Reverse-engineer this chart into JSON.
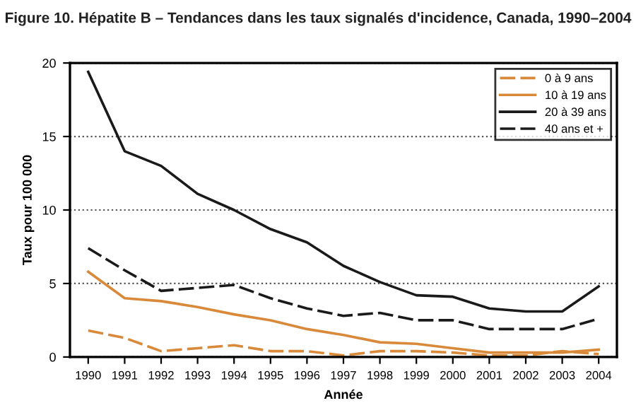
{
  "chart_data": {
    "type": "line",
    "title": "Figure 10. Hépatite B – Tendances dans les taux signalés d'incidence, Canada, 1990–2004",
    "xlabel": "Année",
    "ylabel": "Taux pour 100 000",
    "categories": [
      "1990",
      "1991",
      "1992",
      "1993",
      "1994",
      "1995",
      "1996",
      "1997",
      "1998",
      "1999",
      "2000",
      "2001",
      "2002",
      "2003",
      "2004"
    ],
    "series": [
      {
        "name": "0 à 9 ans",
        "color": "#d9893a",
        "line_style": "dashed",
        "values": [
          1.8,
          1.3,
          0.4,
          0.6,
          0.8,
          0.4,
          0.4,
          0.1,
          0.4,
          0.4,
          0.3,
          0.1,
          0.1,
          0.4,
          0.2
        ]
      },
      {
        "name": "10 à 19 ans",
        "color": "#d9893a",
        "line_style": "solid",
        "values": [
          5.8,
          4.0,
          3.8,
          3.4,
          2.9,
          2.5,
          1.9,
          1.5,
          1.0,
          0.9,
          0.6,
          0.3,
          0.3,
          0.3,
          0.5
        ]
      },
      {
        "name": "20 à 39 ans",
        "color": "#1a1a1a",
        "line_style": "solid",
        "values": [
          19.4,
          14.0,
          13.0,
          11.1,
          10.0,
          8.7,
          7.8,
          6.2,
          5.1,
          4.2,
          4.1,
          3.3,
          3.1,
          3.1,
          4.8
        ]
      },
      {
        "name": "40 ans et +",
        "color": "#1a1a1a",
        "line_style": "dashed",
        "values": [
          7.4,
          5.9,
          4.5,
          4.7,
          4.9,
          4.0,
          3.3,
          2.8,
          3.0,
          2.5,
          2.5,
          1.9,
          1.9,
          1.9,
          2.6
        ]
      }
    ],
    "ylim": [
      0,
      20
    ],
    "yticks": [
      0,
      5,
      10,
      15,
      20
    ],
    "grid": "y",
    "legend": "top right"
  }
}
